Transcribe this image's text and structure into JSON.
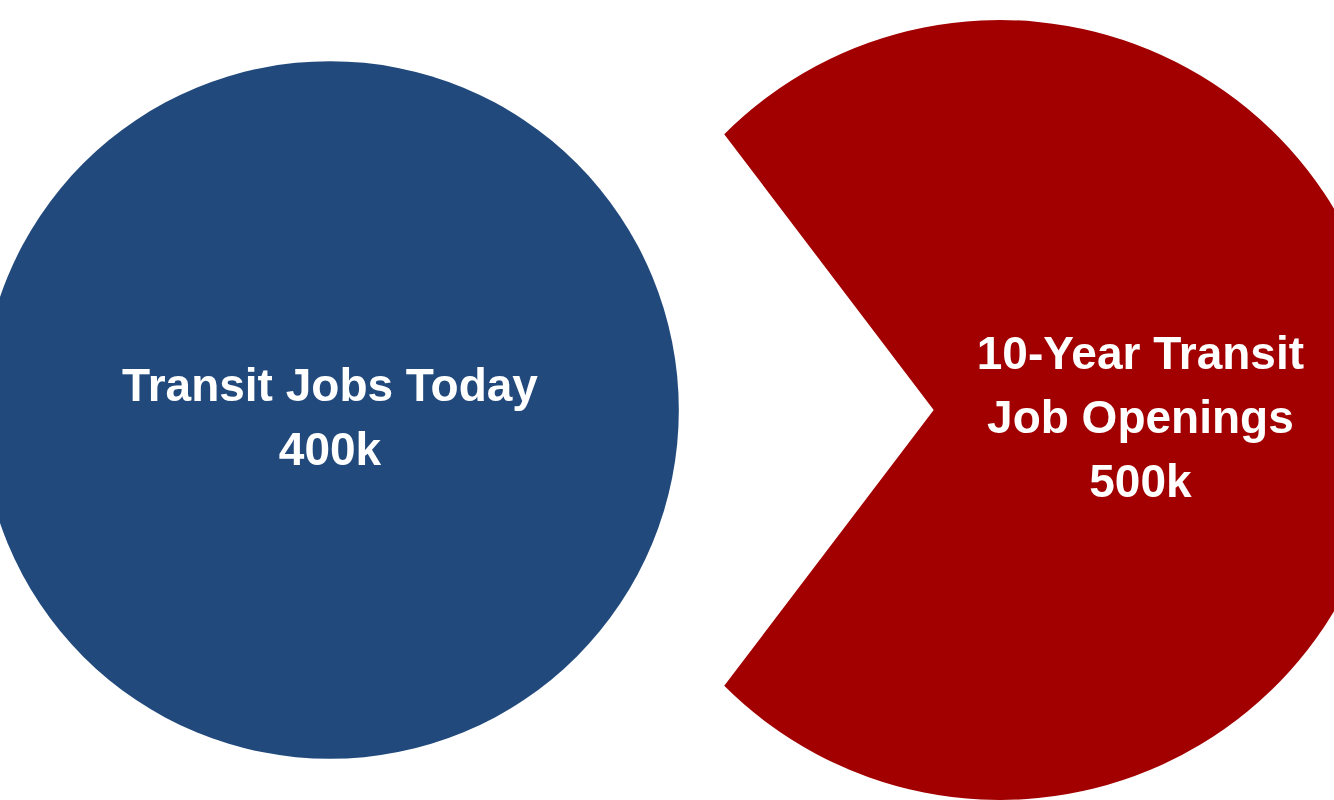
{
  "chart_data": {
    "type": "other",
    "categories": [
      "Transit Jobs Today",
      "10-Year Transit Job Openings"
    ],
    "values": [
      400000,
      500000
    ],
    "value_labels": [
      "400k",
      "500k"
    ],
    "colors": [
      "#21497c",
      "#a20000"
    ]
  }
}
